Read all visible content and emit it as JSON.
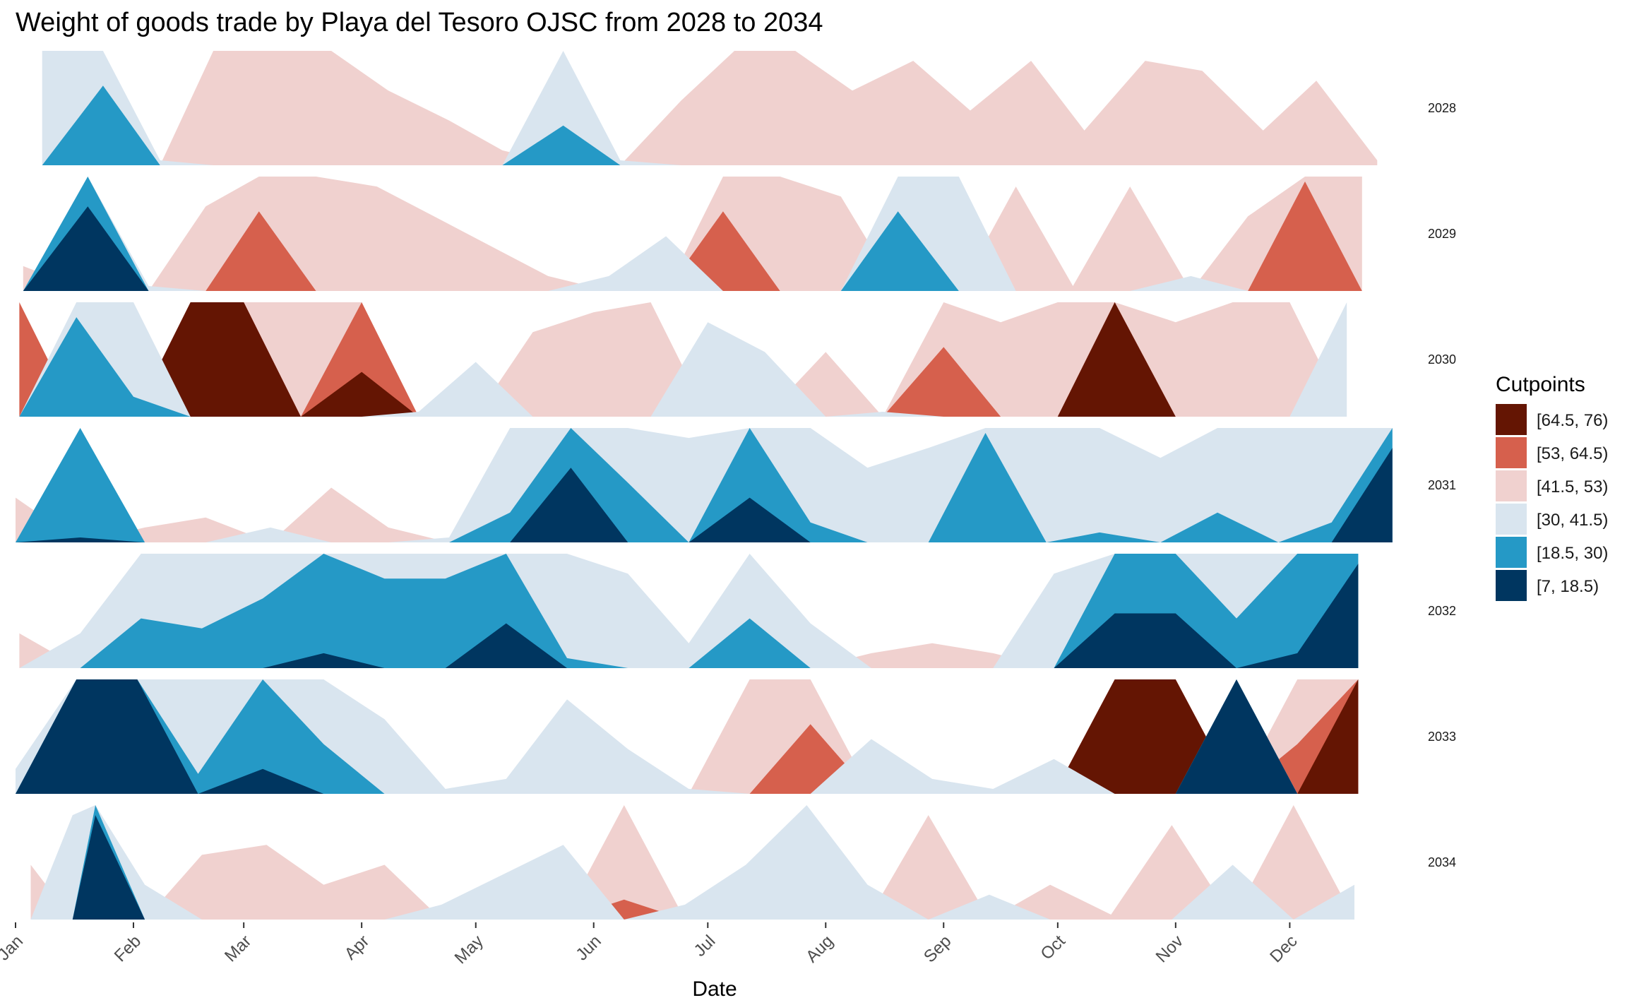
{
  "chart_data": {
    "type": "area",
    "subtype": "horizon",
    "title": "Weight of goods trade by Playa del Tesoro OJSC from 2028 to 2034",
    "xlabel": "Date",
    "ylabel": "",
    "x_ticks": [
      "Jan",
      "Feb",
      "Mar",
      "Apr",
      "May",
      "Jun",
      "Jul",
      "Aug",
      "Sep",
      "Oct",
      "Nov",
      "Dec"
    ],
    "origin": 41.5,
    "band_width": 11.5,
    "legend": {
      "title": "Cutpoints",
      "position": "right",
      "entries": [
        {
          "label": "[64.5, 76)",
          "color": "#641503"
        },
        {
          "label": "[53, 64.5)",
          "color": "#D6604D"
        },
        {
          "label": "[41.5, 53)",
          "color": "#F0D1CF"
        },
        {
          "label": "[30, 41.5)",
          "color": "#D9E5EF"
        },
        {
          "label": "[18.5, 30)",
          "color": "#2599C6"
        },
        {
          "label": "[7, 18.5)",
          "color": "#003660"
        }
      ]
    },
    "panels": [
      {
        "year": "2028",
        "x": [
          "2028-01-08",
          "2028-01-24",
          "2028-02-08",
          "2028-02-22",
          "2028-03-08",
          "2028-03-24",
          "2028-04-08",
          "2028-04-24",
          "2028-05-08",
          "2028-05-24",
          "2028-06-08",
          "2028-06-24",
          "2028-07-08",
          "2028-07-24",
          "2028-08-08",
          "2028-08-24",
          "2028-09-08",
          "2028-09-24",
          "2028-10-08",
          "2028-10-24",
          "2028-11-08",
          "2028-11-24",
          "2028-12-08",
          "2028-12-24"
        ],
        "y": [
          30,
          22,
          41,
          53,
          53,
          53,
          49,
          46,
          43,
          26,
          41,
          48,
          53,
          53,
          49,
          52,
          47,
          52,
          45,
          52,
          51,
          45,
          50,
          42
        ]
      },
      {
        "year": "2029",
        "x": [
          "2029-01-03",
          "2029-01-20",
          "2029-02-05",
          "2029-02-20",
          "2029-03-05",
          "2029-03-20",
          "2029-04-05",
          "2029-04-20",
          "2029-05-05",
          "2029-05-20",
          "2029-06-05",
          "2029-06-20",
          "2029-07-05",
          "2029-07-20",
          "2029-08-05",
          "2029-08-20",
          "2029-09-05",
          "2029-09-20",
          "2029-10-05",
          "2029-10-20",
          "2029-11-05",
          "2029-11-20",
          "2029-12-05",
          "2029-12-20"
        ],
        "y": [
          44,
          10,
          41,
          50,
          61,
          53,
          52,
          49,
          46,
          43,
          40,
          36,
          61,
          53,
          51,
          22,
          30,
          52,
          42,
          52,
          40,
          49,
          64,
          53
        ]
      },
      {
        "year": "2030",
        "x": [
          "2030-01-02",
          "2030-01-17",
          "2030-02-01",
          "2030-02-16",
          "2030-03-01",
          "2030-03-16",
          "2030-04-01",
          "2030-04-16",
          "2030-05-01",
          "2030-05-16",
          "2030-06-01",
          "2030-06-16",
          "2030-07-01",
          "2030-07-16",
          "2030-08-01",
          "2030-08-16",
          "2030-09-01",
          "2030-09-16",
          "2030-10-01",
          "2030-10-16",
          "2030-11-01",
          "2030-11-16",
          "2030-12-01",
          "2030-12-16"
        ],
        "y": [
          64.5,
          20,
          28,
          76,
          76,
          53,
          69,
          41,
          36,
          50,
          52,
          53,
          32,
          35,
          48,
          41,
          60,
          51,
          53,
          76,
          51,
          53,
          53,
          30
        ]
      },
      {
        "year": "2031",
        "x": [
          "2031-01-01",
          "2031-01-18",
          "2031-02-04",
          "2031-02-20",
          "2031-03-08",
          "2031-03-24",
          "2031-04-08",
          "2031-04-24",
          "2031-05-10",
          "2031-05-26",
          "2031-06-10",
          "2031-06-26",
          "2031-07-12",
          "2031-07-28",
          "2031-08-12",
          "2031-08-28",
          "2031-09-12",
          "2031-09-28",
          "2031-10-12",
          "2031-10-28",
          "2031-11-12",
          "2031-11-28",
          "2031-12-12",
          "2031-12-28"
        ],
        "y": [
          46,
          18,
          43,
          44,
          40,
          47,
          43,
          41,
          27,
          11,
          24,
          31,
          14,
          28,
          34,
          32,
          19,
          30,
          29,
          33,
          27,
          30,
          28,
          9
        ]
      },
      {
        "year": "2032",
        "x": [
          "2032-01-02",
          "2032-01-18",
          "2032-02-03",
          "2032-02-19",
          "2032-03-06",
          "2032-03-22",
          "2032-04-07",
          "2032-04-23",
          "2032-05-09",
          "2032-05-25",
          "2032-06-10",
          "2032-06-26",
          "2032-07-12",
          "2032-07-28",
          "2032-08-13",
          "2032-08-29",
          "2032-09-14",
          "2032-09-30",
          "2032-10-16",
          "2032-11-01",
          "2032-11-17",
          "2032-12-03",
          "2032-12-19"
        ],
        "y": [
          45,
          38,
          25,
          26,
          23,
          17,
          21,
          21,
          14,
          29,
          32,
          39,
          25,
          37,
          43,
          44,
          43,
          32,
          13,
          13,
          25,
          17,
          8
        ]
      },
      {
        "year": "2033",
        "x": [
          "2033-01-01",
          "2033-01-17",
          "2033-02-02",
          "2033-02-18",
          "2033-03-06",
          "2033-03-22",
          "2033-04-07",
          "2033-04-23",
          "2033-05-09",
          "2033-05-25",
          "2033-06-10",
          "2033-06-26",
          "2033-07-12",
          "2033-07-28",
          "2033-08-13",
          "2033-08-29",
          "2033-09-14",
          "2033-09-30",
          "2033-10-16",
          "2033-11-01",
          "2033-11-17",
          "2033-12-03",
          "2033-12-19"
        ],
        "y": [
          39,
          7,
          7,
          28,
          16,
          25,
          34,
          41,
          40,
          32,
          37,
          41,
          53,
          60,
          36,
          40,
          41,
          38,
          76,
          76,
          7,
          58,
          76
        ]
      },
      {
        "year": "2034",
        "x": [
          "2034-01-05",
          "2034-01-16",
          "2034-01-22",
          "2034-02-04",
          "2034-02-19",
          "2034-03-07",
          "2034-03-22",
          "2034-04-07",
          "2034-04-22",
          "2034-05-08",
          "2034-05-24",
          "2034-06-09",
          "2034-06-25",
          "2034-07-11",
          "2034-07-27",
          "2034-08-12",
          "2034-08-28",
          "2034-09-13",
          "2034-09-29",
          "2034-10-15",
          "2034-10-31",
          "2034-11-16",
          "2034-12-02",
          "2034-12-18"
        ],
        "y": [
          47,
          31,
          8,
          38,
          48,
          49,
          45,
          47,
          40,
          37,
          34,
          55,
          40,
          36,
          30,
          38,
          52,
          39,
          45,
          42,
          51,
          36,
          53,
          38
        ]
      }
    ]
  }
}
